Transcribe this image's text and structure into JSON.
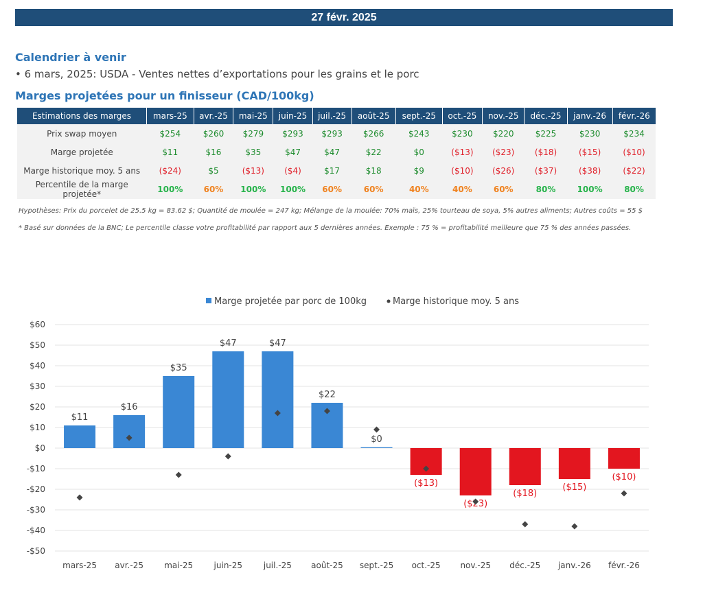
{
  "banner": {
    "date": "27 févr. 2025"
  },
  "calendar": {
    "title": "Calendrier à venir",
    "items": [
      "• 6 mars, 2025: USDA - Ventes nettes d’exportations pour les grains et le porc"
    ]
  },
  "margins": {
    "title": "Marges projetées pour un finisseur (CAD/100kg)",
    "header_label": "Estimations des marges",
    "months": [
      "mars-25",
      "avr.-25",
      "mai-25",
      "juin-25",
      "juil.-25",
      "août-25",
      "sept.-25",
      "oct.-25",
      "nov.-25",
      "déc.-25",
      "janv.-26",
      "févr.-26"
    ],
    "rows": [
      {
        "label": "Prix swap moyen",
        "values": [
          "$254",
          "$260",
          "$279",
          "$293",
          "$293",
          "$266",
          "$243",
          "$230",
          "$220",
          "$225",
          "$230",
          "$234"
        ]
      },
      {
        "label": "Marge projetée",
        "values": [
          "$11",
          "$16",
          "$35",
          "$47",
          "$47",
          "$22",
          "$0",
          "($13)",
          "($23)",
          "($18)",
          "($15)",
          "($10)"
        ]
      },
      {
        "label": "Marge historique moy. 5 ans",
        "values": [
          "($24)",
          "$5",
          "($13)",
          "($4)",
          "$17",
          "$18",
          "$9",
          "($10)",
          "($26)",
          "($37)",
          "($38)",
          "($22)"
        ]
      },
      {
        "label": "Percentile de la marge projetée*",
        "values": [
          "100%",
          "60%",
          "100%",
          "100%",
          "60%",
          "60%",
          "40%",
          "40%",
          "60%",
          "80%",
          "100%",
          "80%"
        ]
      }
    ],
    "notes": [
      "Hypothèses: Prix du porcelet de 25.5 kg = 83.62 $; Quantité de moulée = 247 kg; Mélange de la moulée: 70% maïs, 25% tourteau de soya, 5% autres aliments; Autres coûts = 55 $",
      "* Basé sur données de la BNC; Le percentile classe votre profitabilité par rapport aux 5 dernières années. Exemple : 75 % = profitabilité meilleure que 75 % des années passées."
    ]
  },
  "colors": {
    "positive_bar": "#3a87d4",
    "negative_bar": "#e3161f",
    "marker": "#444444",
    "pct_green": "#27b34b",
    "pct_orange": "#f0821e"
  },
  "chart_data": {
    "type": "bar",
    "categories": [
      "mars-25",
      "avr.-25",
      "mai-25",
      "juin-25",
      "juil.-25",
      "août-25",
      "sept.-25",
      "oct.-25",
      "nov.-25",
      "déc.-25",
      "janv.-26",
      "févr.-26"
    ],
    "series": [
      {
        "name": "Marge projetée par porc de 100kg",
        "type": "bar",
        "values": [
          11,
          16,
          35,
          47,
          47,
          22,
          0,
          -13,
          -23,
          -18,
          -15,
          -10
        ],
        "labels": [
          "$11",
          "$16",
          "$35",
          "$47",
          "$47",
          "$22",
          "$0",
          "($13)",
          "($23)",
          "($18)",
          "($15)",
          "($10)"
        ]
      },
      {
        "name": "Marge historique moy. 5 ans",
        "type": "scatter",
        "values": [
          -24,
          5,
          -13,
          -4,
          17,
          18,
          9,
          -10,
          -26,
          -37,
          -38,
          -22
        ]
      }
    ],
    "ylim": [
      -50,
      60
    ],
    "yticks": [
      60,
      50,
      40,
      30,
      20,
      10,
      0,
      -10,
      -20,
      -30,
      -40,
      -50
    ],
    "ytick_labels": [
      "$60",
      "$50",
      "$40",
      "$30",
      "$20",
      "$10",
      "$0",
      "-$10",
      "-$20",
      "-$30",
      "-$40",
      "-$50"
    ],
    "grid": true,
    "legend": "top"
  }
}
